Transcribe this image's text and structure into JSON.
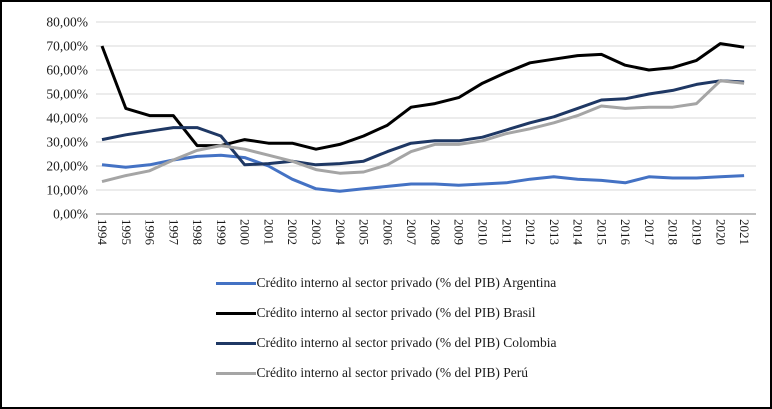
{
  "figure": {
    "background_color": "#FFFFFF",
    "border_color": "#000000"
  },
  "chart_data": {
    "type": "line",
    "title": "",
    "xlabel": "",
    "ylabel": "",
    "ylim": [
      0,
      80
    ],
    "ytick_step": 10,
    "ytick_labels": [
      "0,00%",
      "10,00%",
      "20,00%",
      "30,00%",
      "40,00%",
      "50,00%",
      "60,00%",
      "70,00%",
      "80,00%"
    ],
    "grid": true,
    "gridline_color": "#D9D9D9",
    "axis_line_color": "#808080",
    "legend_position": "bottom",
    "x": [
      "1994",
      "1995",
      "1996",
      "1997",
      "1998",
      "1999",
      "2000",
      "2001",
      "2002",
      "2003",
      "2004",
      "2005",
      "2006",
      "2007",
      "2008",
      "2009",
      "2010",
      "2011",
      "2012",
      "2013",
      "2014",
      "2015",
      "2016",
      "2017",
      "2018",
      "2019",
      "2020",
      "2021"
    ],
    "series": [
      {
        "name": "Crédito interno al sector privado (% del PIB) Argentina",
        "color": "#4472C4",
        "values": [
          20.5,
          19.5,
          20.5,
          22.5,
          24,
          24.5,
          23.5,
          20,
          14.5,
          10.5,
          9.5,
          10.5,
          11.5,
          12.5,
          12.5,
          12,
          12.5,
          13,
          14.5,
          15.5,
          14.5,
          14,
          13,
          15.5,
          15,
          15,
          15.5,
          16
        ]
      },
      {
        "name": "Crédito interno al sector privado (% del PIB) Brasil",
        "color": "#000000",
        "values": [
          70,
          44,
          41,
          41,
          28.5,
          28.5,
          31,
          29.5,
          29.5,
          27,
          29,
          32.5,
          37,
          44.5,
          46,
          48.5,
          54.5,
          59,
          63,
          64.5,
          66,
          66.5,
          62,
          60,
          61,
          64,
          71,
          69.5
        ]
      },
      {
        "name": "Crédito interno al sector privado (% del PIB) Colombia",
        "color": "#1F3864",
        "values": [
          31,
          33,
          34.5,
          36,
          36,
          32.5,
          20.5,
          21,
          22,
          20.5,
          21,
          22,
          26,
          29.5,
          30.5,
          30.5,
          32,
          35,
          38,
          40.5,
          44,
          47.5,
          48,
          50,
          51.5,
          54,
          55.5,
          55
        ]
      },
      {
        "name": "Crédito interno al sector privado (% del PIB) Perú",
        "color": "#A5A5A5",
        "values": [
          13.5,
          16,
          18,
          22.5,
          26.5,
          28.5,
          27,
          24.5,
          22,
          18.5,
          17,
          17.5,
          20.5,
          26,
          29,
          29,
          30.5,
          33.5,
          35.5,
          38,
          41,
          45,
          44,
          44.5,
          44.5,
          46,
          55.5,
          54.5
        ]
      }
    ]
  }
}
